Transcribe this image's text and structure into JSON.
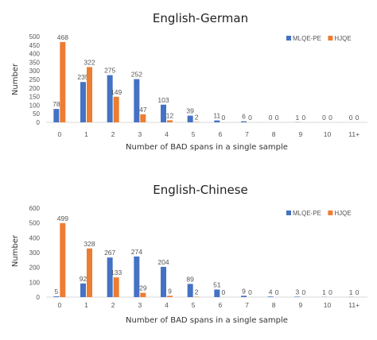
{
  "chart_data": [
    {
      "type": "bar",
      "title": "English-German",
      "xlabel": "Number of BAD spans in a single sample",
      "ylabel": "Number",
      "categories": [
        "0",
        "1",
        "2",
        "3",
        "4",
        "5",
        "6",
        "7",
        "8",
        "9",
        "10",
        "11+"
      ],
      "ylim": [
        0,
        500
      ],
      "yticks": [
        0,
        50,
        100,
        150,
        200,
        250,
        300,
        350,
        400,
        450,
        500
      ],
      "legend_position": "top-right",
      "series": [
        {
          "name": "MLQE-PE",
          "color": "#4472C4",
          "values": [
            78,
            235,
            275,
            252,
            103,
            39,
            11,
            6,
            0,
            1,
            0,
            0
          ]
        },
        {
          "name": "HJQE",
          "color": "#ED7D31",
          "values": [
            468,
            322,
            149,
            47,
            12,
            2,
            0,
            0,
            0,
            0,
            0,
            0
          ]
        }
      ]
    },
    {
      "type": "bar",
      "title": "English-Chinese",
      "xlabel": "Number of BAD spans in a single sample",
      "ylabel": "Number",
      "categories": [
        "0",
        "1",
        "2",
        "3",
        "4",
        "5",
        "6",
        "7",
        "8",
        "9",
        "10",
        "11+"
      ],
      "ylim": [
        0,
        600
      ],
      "yticks": [
        0,
        100,
        200,
        300,
        400,
        500,
        600
      ],
      "legend_position": "top-right",
      "series": [
        {
          "name": "MLQE-PE",
          "color": "#4472C4",
          "values": [
            5,
            92,
            267,
            274,
            204,
            89,
            51,
            9,
            4,
            3,
            1,
            1
          ]
        },
        {
          "name": "HJQE",
          "color": "#ED7D31",
          "values": [
            499,
            328,
            133,
            29,
            9,
            2,
            0,
            0,
            0,
            0,
            0,
            0
          ]
        }
      ]
    }
  ]
}
